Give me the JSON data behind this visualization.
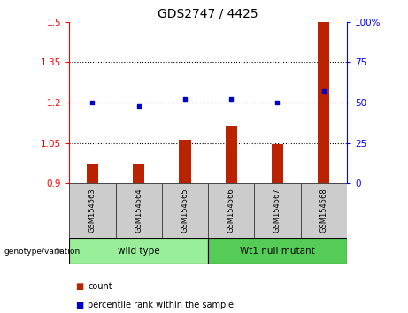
{
  "title": "GDS2747 / 4425",
  "categories": [
    "GSM154563",
    "GSM154564",
    "GSM154565",
    "GSM154566",
    "GSM154567",
    "GSM154568"
  ],
  "bar_values": [
    0.97,
    0.97,
    1.06,
    1.115,
    1.045,
    1.5
  ],
  "scatter_values": [
    50,
    48,
    52,
    52,
    50,
    57
  ],
  "ylim_left": [
    0.9,
    1.5
  ],
  "ylim_right": [
    0,
    100
  ],
  "left_ticks": [
    0.9,
    1.05,
    1.2,
    1.35,
    1.5
  ],
  "right_ticks": [
    0,
    25,
    50,
    75,
    100
  ],
  "left_tick_labels": [
    "0.9",
    "1.05",
    "1.2",
    "1.35",
    "1.5"
  ],
  "right_tick_labels": [
    "0",
    "25",
    "50",
    "75",
    "100%"
  ],
  "bar_color": "#bb2200",
  "scatter_color": "#0000cc",
  "bar_bottom": 0.9,
  "dotted_line_values": [
    1.05,
    1.2,
    1.35
  ],
  "group1_label": "wild type",
  "group2_label": "Wt1 null mutant",
  "group1_indices": [
    0,
    1,
    2
  ],
  "group2_indices": [
    3,
    4,
    5
  ],
  "group_label_prefix": "genotype/variation",
  "group1_color": "#99ee99",
  "group2_color": "#55cc55",
  "xtick_area_color": "#cccccc",
  "legend_count_label": "count",
  "legend_percentile_label": "percentile rank within the sample",
  "background_color": "#ffffff",
  "title_fontsize": 10,
  "tick_fontsize": 7.5,
  "bar_width": 0.25
}
